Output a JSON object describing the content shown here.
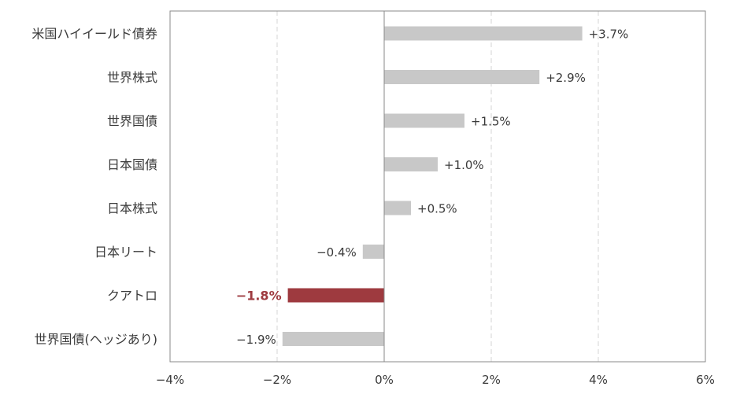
{
  "chart_data": {
    "type": "bar",
    "orientation": "horizontal",
    "categories": [
      "米国ハイイールド債券",
      "世界株式",
      "世界国債",
      "日本国債",
      "日本株式",
      "日本リート",
      "クアトロ",
      "世界国債(ヘッジあり)"
    ],
    "values": [
      3.7,
      2.9,
      1.5,
      1.0,
      0.5,
      -0.4,
      -1.8,
      -1.9
    ],
    "data_labels": [
      "+3.7%",
      "+2.9%",
      "+1.5%",
      "+1.0%",
      "+0.5%",
      "−0.4%",
      "−1.8%",
      "−1.9%"
    ],
    "highlight_category": "クアトロ",
    "xlim": [
      -4,
      6
    ],
    "xticks": [
      -4,
      -2,
      0,
      2,
      4,
      6
    ],
    "xtick_labels": [
      "−4%",
      "−2%",
      "0%",
      "2%",
      "4%",
      "6%"
    ],
    "grid": "vertical-dashed",
    "title": "",
    "xlabel": "",
    "ylabel": ""
  },
  "colors": {
    "bar": "#c8c8c8",
    "highlight": "#9e3a3f",
    "axis": "#8a8a8a",
    "grid": "#d4d4d4",
    "text": "#3a3a3a"
  }
}
